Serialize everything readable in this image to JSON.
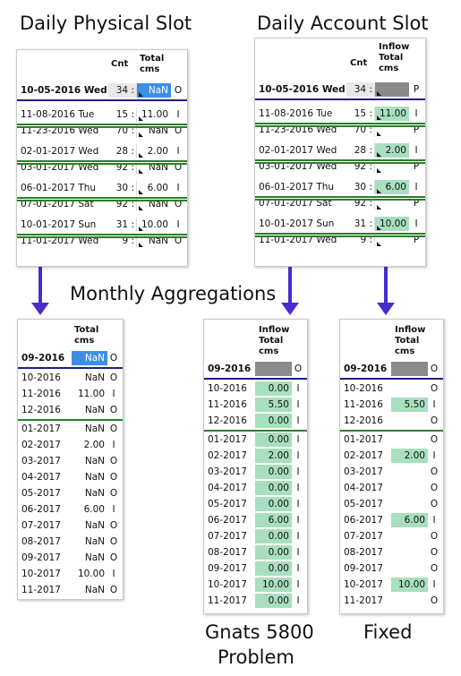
{
  "captions": {
    "daily_physical": "Daily Physical Slot",
    "daily_account": "Daily Account Slot",
    "monthly": "Monthly Aggregations",
    "problem_line1": "Gnats 5800",
    "problem_line2": "Problem",
    "fixed": "Fixed"
  },
  "physical": {
    "col_cnt": "Cnt",
    "col_total_1": "Total",
    "col_total_2": "cms",
    "selected": {
      "date": "10-05-2016 Wed",
      "cnt": "34 :",
      "val": "NaN",
      "flag": "O"
    },
    "rows": [
      {
        "date": "11-08-2016 Tue",
        "cnt": "15 :",
        "val": "11.00",
        "flag": "I"
      },
      {
        "date": "11-23-2016 Wed",
        "cnt": "70 :",
        "val": "NaN",
        "flag": "O"
      },
      {
        "date": "02-01-2017 Wed",
        "cnt": "28 :",
        "val": "2.00",
        "flag": "I"
      },
      {
        "date": "03-01-2017 Wed",
        "cnt": "92 :",
        "val": "NaN",
        "flag": "O"
      },
      {
        "date": "06-01-2017 Thu",
        "cnt": "30 :",
        "val": "6.00",
        "flag": "I"
      },
      {
        "date": "07-01-2017 Sat",
        "cnt": "92 :",
        "val": "NaN",
        "flag": "O"
      },
      {
        "date": "10-01-2017 Sun",
        "cnt": "31 :",
        "val": "10.00",
        "flag": "I"
      },
      {
        "date": "11-01-2017 Wed",
        "cnt": "9 :",
        "val": "NaN",
        "flag": "O"
      }
    ]
  },
  "account": {
    "col_cnt": "Cnt",
    "col_1": "Inflow",
    "col_2": "Total",
    "col_3": "cms",
    "selected": {
      "date": "10-05-2016 Wed",
      "cnt": "34 :",
      "val": "",
      "flag": "P"
    },
    "rows": [
      {
        "date": "11-08-2016 Tue",
        "cnt": "15 :",
        "val": "11.00",
        "flag": "I"
      },
      {
        "date": "11-23-2016 Wed",
        "cnt": "70 :",
        "val": "",
        "flag": "P"
      },
      {
        "date": "02-01-2017 Wed",
        "cnt": "28 :",
        "val": "2.00",
        "flag": "I"
      },
      {
        "date": "03-01-2017 Wed",
        "cnt": "92 :",
        "val": "",
        "flag": "P"
      },
      {
        "date": "06-01-2017 Thu",
        "cnt": "30 :",
        "val": "6.00",
        "flag": "I"
      },
      {
        "date": "07-01-2017 Sat",
        "cnt": "92 :",
        "val": "",
        "flag": "P"
      },
      {
        "date": "10-01-2017 Sun",
        "cnt": "31 :",
        "val": "10.00",
        "flag": "I"
      },
      {
        "date": "11-01-2017 Wed",
        "cnt": "9 :",
        "val": "",
        "flag": "P"
      }
    ]
  },
  "monthly_physical": {
    "col_1": "Total",
    "col_2": "cms",
    "selected": {
      "date": "09-2016",
      "val": "NaN",
      "flag": "O"
    },
    "rows": [
      {
        "date": "10-2016",
        "val": "NaN",
        "flag": "O"
      },
      {
        "date": "11-2016",
        "val": "11.00",
        "flag": "I"
      },
      {
        "date": "12-2016",
        "val": "NaN",
        "flag": "O"
      },
      {
        "date": "01-2017",
        "val": "NaN",
        "flag": "O"
      },
      {
        "date": "02-2017",
        "val": "2.00",
        "flag": "I"
      },
      {
        "date": "03-2017",
        "val": "NaN",
        "flag": "O"
      },
      {
        "date": "04-2017",
        "val": "NaN",
        "flag": "O"
      },
      {
        "date": "05-2017",
        "val": "NaN",
        "flag": "O"
      },
      {
        "date": "06-2017",
        "val": "6.00",
        "flag": "I"
      },
      {
        "date": "07-2017",
        "val": "NaN",
        "flag": "O"
      },
      {
        "date": "08-2017",
        "val": "NaN",
        "flag": "O"
      },
      {
        "date": "09-2017",
        "val": "NaN",
        "flag": "O"
      },
      {
        "date": "10-2017",
        "val": "10.00",
        "flag": "I"
      },
      {
        "date": "11-2017",
        "val": "NaN",
        "flag": "O"
      }
    ]
  },
  "monthly_problem": {
    "col_1": "Inflow",
    "col_2": "Total",
    "col_3": "cms",
    "selected": {
      "date": "09-2016",
      "val": "",
      "flag": "O"
    },
    "rows": [
      {
        "date": "10-2016",
        "val": "0.00",
        "flag": "I"
      },
      {
        "date": "11-2016",
        "val": "5.50",
        "flag": "I"
      },
      {
        "date": "12-2016",
        "val": "0.00",
        "flag": "I"
      },
      {
        "date": "01-2017",
        "val": "0.00",
        "flag": "I"
      },
      {
        "date": "02-2017",
        "val": "2.00",
        "flag": "I"
      },
      {
        "date": "03-2017",
        "val": "0.00",
        "flag": "I"
      },
      {
        "date": "04-2017",
        "val": "0.00",
        "flag": "I"
      },
      {
        "date": "05-2017",
        "val": "0.00",
        "flag": "I"
      },
      {
        "date": "06-2017",
        "val": "6.00",
        "flag": "I"
      },
      {
        "date": "07-2017",
        "val": "0.00",
        "flag": "I"
      },
      {
        "date": "08-2017",
        "val": "0.00",
        "flag": "I"
      },
      {
        "date": "09-2017",
        "val": "0.00",
        "flag": "I"
      },
      {
        "date": "10-2017",
        "val": "10.00",
        "flag": "I"
      },
      {
        "date": "11-2017",
        "val": "0.00",
        "flag": "I"
      }
    ]
  },
  "monthly_fixed": {
    "col_1": "Inflow",
    "col_2": "Total",
    "col_3": "cms",
    "selected": {
      "date": "09-2016",
      "val": "",
      "flag": "O"
    },
    "rows": [
      {
        "date": "10-2016",
        "val": "",
        "flag": "O"
      },
      {
        "date": "11-2016",
        "val": "5.50",
        "flag": "I"
      },
      {
        "date": "12-2016",
        "val": "",
        "flag": "O"
      },
      {
        "date": "01-2017",
        "val": "",
        "flag": "O"
      },
      {
        "date": "02-2017",
        "val": "2.00",
        "flag": "I"
      },
      {
        "date": "03-2017",
        "val": "",
        "flag": "O"
      },
      {
        "date": "04-2017",
        "val": "",
        "flag": "O"
      },
      {
        "date": "05-2017",
        "val": "",
        "flag": "O"
      },
      {
        "date": "06-2017",
        "val": "6.00",
        "flag": "I"
      },
      {
        "date": "07-2017",
        "val": "",
        "flag": "O"
      },
      {
        "date": "08-2017",
        "val": "",
        "flag": "O"
      },
      {
        "date": "09-2017",
        "val": "",
        "flag": "O"
      },
      {
        "date": "10-2017",
        "val": "10.00",
        "flag": "I"
      },
      {
        "date": "11-2017",
        "val": "",
        "flag": "O"
      }
    ]
  },
  "colors": {
    "selection_blue": "#3e8ee8",
    "value_green": "#a8dfbf",
    "empty_gray": "#8a8a8a",
    "arrow_purple": "#4a2bd0",
    "divider_blue": "#1a1f8a",
    "divider_green": "#2c7d2c"
  }
}
